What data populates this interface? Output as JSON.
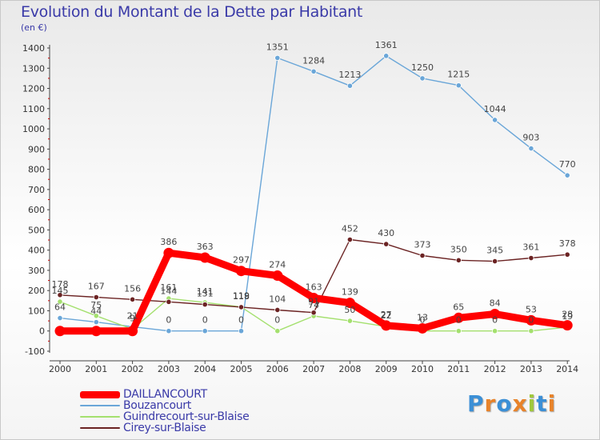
{
  "chart_data": {
    "type": "line",
    "title": "Evolution du Montant de la Dette par Habitant",
    "unit_label": "(en €)",
    "x": [
      "2000",
      "2001",
      "2002",
      "2003",
      "2004",
      "2005",
      "2006",
      "2007",
      "2008",
      "2009",
      "2010",
      "2011",
      "2012",
      "2013",
      "2014"
    ],
    "ylim": [
      -100,
      1400
    ],
    "yticks": [
      "1400",
      "1300",
      "1200",
      "1100",
      "1000",
      "900",
      "800",
      "700",
      "600",
      "500",
      "400",
      "300",
      "200",
      "100",
      "0",
      "-100"
    ],
    "grid": false,
    "legend_position": "bottom-left",
    "series": [
      {
        "name": "DAILLANCOURT",
        "color": "#ff0000",
        "values": [
          0,
          0,
          0,
          386,
          363,
          297,
          274,
          163,
          139,
          27,
          13,
          65,
          84,
          53,
          28
        ],
        "labels": [
          "",
          "",
          "",
          "386",
          "363",
          "297",
          "274",
          "163",
          "139",
          "27",
          "13",
          "65",
          "84",
          "53",
          "28"
        ]
      },
      {
        "name": "Bouzancourt",
        "color": "#6aa6d8",
        "values": [
          64,
          44,
          21,
          0,
          0,
          0,
          1351,
          1284,
          1213,
          1361,
          1250,
          1215,
          1044,
          903,
          770
        ],
        "labels": [
          "64",
          "44",
          "21",
          "0",
          "0",
          "0",
          "1351",
          "1284",
          "1213",
          "1361",
          "1250",
          "1215",
          "1044",
          "903",
          "770"
        ]
      },
      {
        "name": "Guindrecourt-sur-Blaise",
        "color": "#a4e06e",
        "values": [
          145,
          75,
          9,
          161,
          141,
          119,
          0,
          74,
          50,
          22,
          0,
          0,
          0,
          0,
          19
        ],
        "labels": [
          "145",
          "75",
          "9",
          "161",
          "141",
          "119",
          "0",
          "74",
          "50",
          "22",
          "0",
          "0",
          "0",
          "0",
          "19"
        ]
      },
      {
        "name": "Cirey-sur-Blaise",
        "color": "#6b2323",
        "values": [
          178,
          167,
          156,
          144,
          131,
          118,
          104,
          91,
          452,
          430,
          373,
          350,
          345,
          361,
          378
        ],
        "labels": [
          "178",
          "167",
          "156",
          "144",
          "131",
          "118",
          "104",
          "91",
          "452",
          "430",
          "373",
          "350",
          "345",
          "361",
          "378"
        ]
      }
    ]
  },
  "logo_text": "Proxiti",
  "logo_colors": [
    "#3b8fd6",
    "#e8832a",
    "#3b8fd6",
    "#e8832a",
    "#a0c83c",
    "#3b8fd6",
    "#e8832a"
  ]
}
